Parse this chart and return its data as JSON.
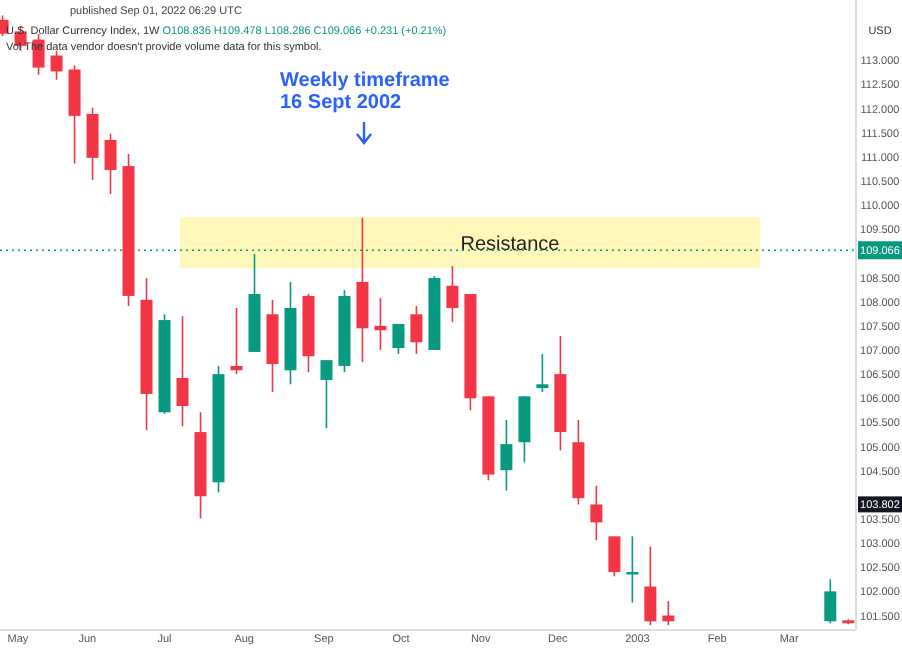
{
  "chart_data": {
    "type": "candlestick",
    "title": "U.S. Dollar Currency Index, 1W",
    "subtitle": "O108.836 H109.478 L108.286 C109.066 +0.231 (+0.21%)",
    "annotations": [
      "published Sep 01, 2022 06:29 UTC",
      "Vol",
      "The data vendor doesn't provide volume data for this symbol.",
      "USD",
      "Weekly timeframe\n16 Sept 2002",
      {
        "text": "103.802",
        "y": 103.802
      }
    ],
    "x": [
      "2002-04-29",
      "2002-05-06",
      "2002-05-13",
      "2002-05-20",
      "2002-05-27",
      "2002-06-03",
      "2002-06-10",
      "2002-06-17",
      "2002-06-24",
      "2002-07-01",
      "2002-07-08",
      "2002-07-15",
      "2002-07-22",
      "2002-07-29",
      "2002-08-05",
      "2002-08-12",
      "2002-08-19",
      "2002-08-26",
      "2002-09-02",
      "2002-09-09",
      "2002-09-16",
      "2002-09-23",
      "2002-09-30",
      "2002-10-07",
      "2002-10-14",
      "2002-10-21",
      "2002-10-28",
      "2002-11-04",
      "2002-11-11",
      "2002-11-18",
      "2002-11-25",
      "2002-12-02",
      "2002-12-09",
      "2002-12-16",
      "2002-12-23",
      "2002-12-30",
      "2003-01-06",
      "2003-01-13",
      "2003-03-17",
      "2003-03-24"
    ],
    "ohlc": [
      [
        113.84,
        113.93,
        113.5,
        113.55
      ],
      [
        113.6,
        113.7,
        113.2,
        113.3
      ],
      [
        113.43,
        113.55,
        112.7,
        112.85
      ],
      [
        113.1,
        113.2,
        112.6,
        112.77
      ],
      [
        112.81,
        112.9,
        110.86,
        111.85
      ],
      [
        111.89,
        112.02,
        110.52,
        110.98
      ],
      [
        111.35,
        111.48,
        110.23,
        110.73
      ],
      [
        110.81,
        111.06,
        107.91,
        108.12
      ],
      [
        108.04,
        108.49,
        105.34,
        106.09
      ],
      [
        105.71,
        107.74,
        105.68,
        107.62
      ],
      [
        106.42,
        107.7,
        105.42,
        105.84
      ],
      [
        105.3,
        105.71,
        103.51,
        103.97
      ],
      [
        104.26,
        106.67,
        104.05,
        106.5
      ],
      [
        106.67,
        107.87,
        106.5,
        106.58
      ],
      [
        106.96,
        108.99,
        106.96,
        108.16
      ],
      [
        107.74,
        108.04,
        106.13,
        106.71
      ],
      [
        106.58,
        108.41,
        106.29,
        107.87
      ],
      [
        108.12,
        108.16,
        106.54,
        106.87
      ],
      [
        106.38,
        106.79,
        105.38,
        106.79
      ],
      [
        106.67,
        108.24,
        106.54,
        108.12
      ],
      [
        108.41,
        109.74,
        106.75,
        107.45
      ],
      [
        107.5,
        108.08,
        107.0,
        107.41
      ],
      [
        107.04,
        107.54,
        106.92,
        107.54
      ],
      [
        107.74,
        107.91,
        106.92,
        107.16
      ],
      [
        107.0,
        108.53,
        107.0,
        108.49
      ],
      [
        108.33,
        108.74,
        107.58,
        107.87
      ],
      [
        108.16,
        108.16,
        105.75,
        106.0
      ],
      [
        106.04,
        106.04,
        104.3,
        104.42
      ],
      [
        104.51,
        105.55,
        104.09,
        105.05
      ],
      [
        105.09,
        106.04,
        104.67,
        106.04
      ],
      [
        106.21,
        106.92,
        106.13,
        106.29
      ],
      [
        106.5,
        107.29,
        104.92,
        105.3
      ],
      [
        105.09,
        105.55,
        103.8,
        103.93
      ],
      [
        103.8,
        104.19,
        103.06,
        103.43
      ],
      [
        103.14,
        103.14,
        102.31,
        102.4
      ],
      [
        102.35,
        103.14,
        101.77,
        102.4
      ],
      [
        102.1,
        102.93,
        101.3,
        101.38
      ],
      [
        101.5,
        101.8,
        101.3,
        101.38
      ],
      [
        101.38,
        102.25,
        101.34,
        102.0
      ],
      [
        101.4,
        101.42,
        101.32,
        101.34
      ]
    ],
    "colors": [
      "#f23645",
      "#f23645",
      "#f23645",
      "#f23645",
      "#f23645",
      "#f23645",
      "#f23645",
      "#f23645",
      "#f23645",
      "#089981",
      "#f23645",
      "#f23645",
      "#089981",
      "#f23645",
      "#089981",
      "#f23645",
      "#089981",
      "#f23645",
      "#089981",
      "#089981",
      "#f23645",
      "#f23645",
      "#089981",
      "#f23645",
      "#089981",
      "#f23645",
      "#f23645",
      "#f23645",
      "#089981",
      "#089981",
      "#089981",
      "#f23645",
      "#f23645",
      "#f23645",
      "#f23645",
      "#089981",
      "#f23645",
      "#f23645",
      "#089981",
      "#f23645"
    ],
    "xlim": [
      "2002-04-28",
      "2003-03-27"
    ],
    "xticks": [
      {
        "value": "2002-05-01",
        "label": "May"
      },
      {
        "value": "2002-06-01",
        "label": "Jun"
      },
      {
        "value": "2002-07-01",
        "label": "Jul"
      },
      {
        "value": "2002-08-01",
        "label": "Aug"
      },
      {
        "value": "2002-09-01",
        "label": "Sep"
      },
      {
        "value": "2002-10-01",
        "label": "Oct"
      },
      {
        "value": "2002-11-01",
        "label": "Nov"
      },
      {
        "value": "2002-12-01",
        "label": "Dec"
      },
      {
        "value": "2003-01-01",
        "label": "2003"
      },
      {
        "value": "2003-02-01",
        "label": "Feb"
      },
      {
        "value": "2003-03-01",
        "label": "Mar"
      }
    ],
    "ylim": [
      101.2,
      114.25
    ],
    "yticks": [
      {
        "value": 101.5,
        "label": "101.500"
      },
      {
        "value": 102,
        "label": "102.000"
      },
      {
        "value": 102.5,
        "label": "102.500"
      },
      {
        "value": 103,
        "label": "103.000"
      },
      {
        "value": 103.5,
        "label": "103.500"
      },
      {
        "value": 104.5,
        "label": "104.500"
      },
      {
        "value": 105,
        "label": "105.000"
      },
      {
        "value": 105.5,
        "label": "105.500"
      },
      {
        "value": 106,
        "label": "106.000"
      },
      {
        "value": 106.5,
        "label": "106.500"
      },
      {
        "value": 107,
        "label": "107.000"
      },
      {
        "value": 107.5,
        "label": "107.500"
      },
      {
        "value": 108,
        "label": "108.000"
      },
      {
        "value": 108.5,
        "label": "108.500"
      },
      {
        "value": 109.5,
        "label": "109.500"
      },
      {
        "value": 110,
        "label": "110.000"
      },
      {
        "value": 110.5,
        "label": "110.500"
      },
      {
        "value": 111,
        "label": "111.000"
      },
      {
        "value": 111.5,
        "label": "111.500"
      },
      {
        "value": 112,
        "label": "112.000"
      },
      {
        "value": 112.5,
        "label": "112.500"
      },
      {
        "value": 113,
        "label": "113.000"
      }
    ],
    "ref_lines": [
      {
        "axis": "y",
        "value": 109.066,
        "label": "109.066",
        "color": "#089981",
        "line_style": "dotted"
      }
    ],
    "bands": [
      {
        "axis": "y",
        "from": 108.7,
        "to": 109.75,
        "label": "Resistance",
        "color": "#fff59d"
      }
    ]
  }
}
